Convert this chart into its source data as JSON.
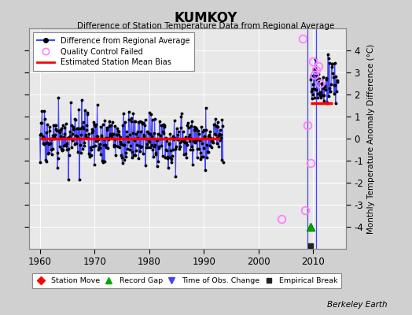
{
  "title": "KUMKOY",
  "subtitle": "Difference of Station Temperature Data from Regional Average",
  "ylabel": "Monthly Temperature Anomaly Difference (°C)",
  "xlabel_ticks": [
    1960,
    1970,
    1980,
    1990,
    2000,
    2010
  ],
  "yticks": [
    -4,
    -3,
    -2,
    -1,
    0,
    1,
    2,
    3,
    4
  ],
  "ylim": [
    -5,
    5
  ],
  "xlim": [
    1958,
    2016
  ],
  "background_color": "#d0d0d0",
  "plot_bg_color": "#e8e8e8",
  "grid_color": "#ffffff",
  "line_color": "#4444ff",
  "dot_color": "#000000",
  "qc_color": "#ff80ff",
  "bias_color": "#ff0000",
  "bias_early_y": 0.0,
  "bias_early_xstart": 1960,
  "bias_early_xend": 1993,
  "bias_late_y": 1.6,
  "bias_late_xstart": 2009.5,
  "bias_late_xend": 2013.5,
  "gap_line_x": 2009.0,
  "gap_line2_x": 2010.5,
  "record_gap_x": 2009.5,
  "record_gap_y": -4.0,
  "empirical_break_x": 2009.5,
  "empirical_break_y": -4.87,
  "qc_points": [
    [
      2008.0,
      4.55
    ],
    [
      2009.0,
      0.6
    ],
    [
      2010.0,
      3.5
    ],
    [
      2010.5,
      3.1
    ],
    [
      2011.0,
      3.3
    ],
    [
      2011.3,
      2.5
    ],
    [
      2010.2,
      2.9
    ],
    [
      2009.5,
      -1.1
    ],
    [
      2008.5,
      -3.25
    ],
    [
      2004.2,
      -3.65
    ]
  ],
  "watermark": "Berkeley Earth",
  "seed": 17
}
